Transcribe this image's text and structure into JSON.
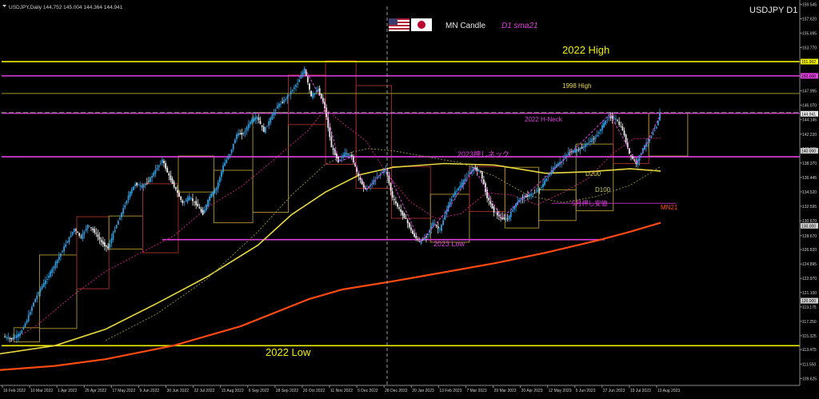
{
  "header": {
    "info": "USDJPY,Daily  144.752 145.004 144.364 144.941",
    "symbol_label": "USDJPY D1",
    "indicator_mn": "MN Candle",
    "indicator_sma": "D1 sma21"
  },
  "annotations": {
    "high_2022": "2022 High",
    "high_1998": "1998 High",
    "low_2022": "2022 Low",
    "low_2023": "2023 Low",
    "h_neck_2022": "2022 H-Neck",
    "neck_2023": "2023押しネック",
    "may_low": "5月押し安値",
    "d200": "D200",
    "d100": "D100",
    "mn21": "MN21"
  },
  "colors": {
    "background": "#000000",
    "axis": "#8a8a8a",
    "text": "#cfcfcf",
    "bull_candle": "#2f9ee0",
    "bear_candle": "#e8e8e8",
    "mn_box_bull": "#a08a2a",
    "mn_box_bear": "#9a2a2a",
    "yellow_line": "#f0f000",
    "magenta_line": "#e040e0",
    "d200": "#e8d840",
    "d100": "#8a8a30",
    "mn21": "#ff4a10",
    "sma21": "#c02080"
  },
  "chart_data": {
    "type": "candlestick",
    "symbol": "USDJPY",
    "timeframe": "Daily",
    "y_ticks": [
      109.625,
      111.55,
      113.475,
      115.325,
      117.25,
      119.175,
      121.1,
      122.97,
      124.895,
      126.82,
      128.67,
      130.67,
      132.595,
      134.52,
      136.445,
      138.37,
      140.295,
      142.22,
      144.145,
      146.07,
      147.995,
      149.92,
      151.845,
      153.77,
      155.695,
      157.62,
      159.545
    ],
    "y_tag_values": [
      "151.902",
      "150.000",
      "144.941",
      "140.000",
      "130.000",
      "120.000"
    ],
    "ylim": [
      108.7,
      159.8
    ],
    "x_labels": [
      "16 Feb 2022",
      "10 Mar 2022",
      "1 Apr 2022",
      "25 Apr 2022",
      "17 May 2022",
      "9 Jun 2022",
      "30 Jun 2022",
      "22 Jul 2022",
      "15 Aug 2022",
      "6 Sep 2022",
      "28 Sep 2022",
      "20 Oct 2022",
      "11 Nov 2022",
      "5 Dec 2022",
      "28 Dec 2022",
      "20 Jan 2023",
      "13 Feb 2023",
      "7 Mar 2023",
      "29 Mar 2023",
      "20 Apr 2023",
      "12 May 2023",
      "5 Jun 2023",
      "27 Jun 2023",
      "19 Jul 2023",
      "10 Aug 2023"
    ],
    "x_range": [
      0,
      388
    ],
    "price_path": [
      [
        0,
        115.2
      ],
      [
        5,
        114.9
      ],
      [
        10,
        115.6
      ],
      [
        14,
        117.4
      ],
      [
        18,
        119.8
      ],
      [
        22,
        121.6
      ],
      [
        26,
        123.0
      ],
      [
        30,
        124.6
      ],
      [
        34,
        126.3
      ],
      [
        38,
        128.0
      ],
      [
        42,
        129.6
      ],
      [
        46,
        128.4
      ],
      [
        50,
        130.1
      ],
      [
        54,
        129.2
      ],
      [
        58,
        127.8
      ],
      [
        62,
        127.0
      ],
      [
        66,
        129.6
      ],
      [
        70,
        131.7
      ],
      [
        74,
        134.0
      ],
      [
        78,
        135.6
      ],
      [
        82,
        135.2
      ],
      [
        86,
        136.0
      ],
      [
        90,
        137.4
      ],
      [
        94,
        138.8
      ],
      [
        98,
        136.6
      ],
      [
        102,
        134.8
      ],
      [
        106,
        133.0
      ],
      [
        110,
        133.8
      ],
      [
        114,
        132.9
      ],
      [
        118,
        131.6
      ],
      [
        122,
        133.9
      ],
      [
        126,
        135.0
      ],
      [
        130,
        138.0
      ],
      [
        134,
        139.6
      ],
      [
        138,
        142.2
      ],
      [
        142,
        142.3
      ],
      [
        146,
        143.9
      ],
      [
        150,
        144.5
      ],
      [
        154,
        142.6
      ],
      [
        158,
        144.3
      ],
      [
        162,
        146.0
      ],
      [
        166,
        146.7
      ],
      [
        170,
        147.9
      ],
      [
        174,
        149.1
      ],
      [
        178,
        150.9
      ],
      [
        182,
        147.2
      ],
      [
        186,
        148.2
      ],
      [
        190,
        145.8
      ],
      [
        194,
        140.5
      ],
      [
        198,
        138.6
      ],
      [
        202,
        139.7
      ],
      [
        206,
        139.2
      ],
      [
        210,
        136.5
      ],
      [
        214,
        134.8
      ],
      [
        218,
        135.7
      ],
      [
        222,
        136.8
      ],
      [
        226,
        137.6
      ],
      [
        230,
        133.7
      ],
      [
        234,
        132.2
      ],
      [
        238,
        130.8
      ],
      [
        242,
        128.9
      ],
      [
        246,
        127.8
      ],
      [
        250,
        128.6
      ],
      [
        254,
        130.4
      ],
      [
        258,
        129.4
      ],
      [
        262,
        132.1
      ],
      [
        266,
        134.2
      ],
      [
        270,
        135.3
      ],
      [
        274,
        136.6
      ],
      [
        278,
        137.7
      ],
      [
        282,
        137.2
      ],
      [
        286,
        133.8
      ],
      [
        290,
        131.9
      ],
      [
        294,
        131.0
      ],
      [
        298,
        130.9
      ],
      [
        302,
        132.6
      ],
      [
        306,
        133.7
      ],
      [
        310,
        134.0
      ],
      [
        314,
        134.4
      ],
      [
        318,
        135.2
      ],
      [
        322,
        136.7
      ],
      [
        326,
        137.9
      ],
      [
        330,
        138.6
      ],
      [
        334,
        139.8
      ],
      [
        338,
        140.0
      ],
      [
        342,
        140.4
      ],
      [
        346,
        141.2
      ],
      [
        350,
        141.8
      ],
      [
        354,
        143.3
      ],
      [
        358,
        144.6
      ],
      [
        362,
        144.2
      ],
      [
        366,
        142.8
      ],
      [
        370,
        139.6
      ],
      [
        374,
        138.3
      ],
      [
        378,
        140.3
      ],
      [
        382,
        141.6
      ],
      [
        386,
        143.3
      ],
      [
        388,
        144.941
      ]
    ],
    "monthly_boxes": [
      [
        6,
        21,
        114.5,
        116.4
      ],
      [
        21,
        43,
        116.3,
        126.1
      ],
      [
        43,
        62,
        121.6,
        131.2
      ],
      [
        62,
        82,
        126.9,
        131.3
      ],
      [
        82,
        103,
        126.4,
        135.6
      ],
      [
        103,
        124,
        134.5,
        139.3
      ],
      [
        124,
        147,
        130.4,
        137.4
      ],
      [
        147,
        168,
        131.8,
        145.1
      ],
      [
        168,
        190,
        143.5,
        150.1
      ],
      [
        190,
        208,
        138.2,
        152.0
      ],
      [
        208,
        229,
        135.0,
        148.7
      ],
      [
        229,
        252,
        131.0,
        137.9
      ],
      [
        252,
        275,
        127.8,
        134.2
      ],
      [
        275,
        296,
        131.9,
        137.9
      ],
      [
        296,
        316,
        129.7,
        137.8
      ],
      [
        316,
        338,
        130.7,
        134.8
      ],
      [
        338,
        360,
        132.0,
        140.9
      ],
      [
        360,
        381,
        138.3,
        145.0
      ],
      [
        381,
        404,
        139.3,
        145.0
      ]
    ],
    "series": [
      {
        "name": "D200",
        "values": [
          [
            -6,
            112.8
          ],
          [
            30,
            114.0
          ],
          [
            60,
            116.2
          ],
          [
            90,
            119.6
          ],
          [
            120,
            123.2
          ],
          [
            150,
            127.4
          ],
          [
            170,
            131.5
          ],
          [
            190,
            134.5
          ],
          [
            210,
            136.8
          ],
          [
            230,
            137.8
          ],
          [
            260,
            138.3
          ],
          [
            290,
            138.1
          ],
          [
            320,
            137.0
          ],
          [
            345,
            137.2
          ],
          [
            370,
            137.6
          ],
          [
            388,
            137.3
          ]
        ]
      },
      {
        "name": "D100",
        "values": [
          [
            60,
            114.7
          ],
          [
            90,
            118.2
          ],
          [
            120,
            122.9
          ],
          [
            150,
            129.2
          ],
          [
            170,
            134.1
          ],
          [
            190,
            138.2
          ],
          [
            205,
            139.8
          ],
          [
            215,
            140.3
          ],
          [
            230,
            140.0
          ],
          [
            250,
            139.2
          ],
          [
            270,
            138.4
          ],
          [
            290,
            136.6
          ],
          [
            310,
            134.0
          ],
          [
            330,
            133.1
          ],
          [
            350,
            133.9
          ],
          [
            370,
            135.4
          ],
          [
            388,
            137.9
          ]
        ]
      },
      {
        "name": "MN21",
        "values": [
          [
            -6,
            110.7
          ],
          [
            30,
            111.3
          ],
          [
            60,
            112.2
          ],
          [
            100,
            114.0
          ],
          [
            140,
            116.6
          ],
          [
            180,
            120.2
          ],
          [
            200,
            121.5
          ],
          [
            230,
            122.6
          ],
          [
            260,
            123.8
          ],
          [
            290,
            125.0
          ],
          [
            320,
            126.4
          ],
          [
            350,
            128.0
          ],
          [
            370,
            129.2
          ],
          [
            388,
            130.4
          ]
        ]
      },
      {
        "name": "D1 sma21",
        "values": [
          [
            4,
            114.6
          ],
          [
            20,
            116.8
          ],
          [
            40,
            120.6
          ],
          [
            60,
            123.9
          ],
          [
            80,
            126.3
          ],
          [
            100,
            128.6
          ],
          [
            120,
            132.4
          ],
          [
            140,
            135.2
          ],
          [
            160,
            138.9
          ],
          [
            180,
            142.8
          ],
          [
            190,
            145.6
          ],
          [
            200,
            143.7
          ],
          [
            214,
            141.3
          ],
          [
            226,
            137.0
          ],
          [
            240,
            133.2
          ],
          [
            255,
            131.0
          ],
          [
            270,
            131.6
          ],
          [
            285,
            134.4
          ],
          [
            300,
            134.1
          ],
          [
            315,
            132.8
          ],
          [
            330,
            134.4
          ],
          [
            345,
            136.3
          ],
          [
            360,
            139.7
          ],
          [
            372,
            141.6
          ],
          [
            388,
            141.7
          ]
        ]
      }
    ],
    "hlines": [
      {
        "label": "2022 High",
        "value": 151.9
      },
      {
        "label": "1998 High",
        "value": 147.65
      },
      {
        "label": "2022 Low",
        "value": 114.0
      },
      {
        "label": "150.000",
        "value": 150.0
      },
      {
        "label": "2023 Low",
        "value": 128.15
      },
      {
        "label": "2022 H-Neck",
        "value": 145.0
      },
      {
        "label": "2023押しネック",
        "value": 139.2
      },
      {
        "label": "5月押し安値",
        "value": 133.0
      }
    ]
  }
}
